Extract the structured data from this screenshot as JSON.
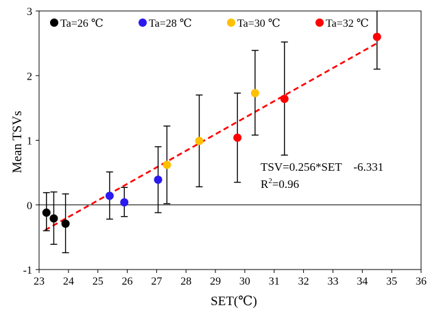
{
  "chart_data": {
    "type": "scatter",
    "title": "",
    "xlabel": "SET(℃)",
    "ylabel": "Mean TSVs",
    "xlim": [
      23,
      36
    ],
    "ylim": [
      -1,
      3
    ],
    "x_ticks": [
      "23",
      "24",
      "25",
      "26",
      "27",
      "28",
      "29",
      "30",
      "31",
      "32",
      "33",
      "34",
      "35",
      "36"
    ],
    "y_ticks": [
      "-1",
      "0",
      "1",
      "2",
      "3"
    ],
    "grid": false,
    "legend_position": "top",
    "series": [
      {
        "name": "Ta=26 ℃",
        "color": "#000000",
        "points": [
          {
            "x": 23.25,
            "y": -0.12,
            "err_low": -0.4,
            "err_high": 0.19
          },
          {
            "x": 23.5,
            "y": -0.21,
            "err_low": -0.61,
            "err_high": 0.2
          },
          {
            "x": 23.9,
            "y": -0.29,
            "err_low": -0.74,
            "err_high": 0.17
          }
        ]
      },
      {
        "name": "Ta=28 ℃",
        "color": "#2a1aef",
        "points": [
          {
            "x": 25.4,
            "y": 0.14,
            "err_low": -0.22,
            "err_high": 0.51
          },
          {
            "x": 25.9,
            "y": 0.04,
            "err_low": -0.18,
            "err_high": 0.27
          },
          {
            "x": 27.05,
            "y": 0.39,
            "err_low": -0.12,
            "err_high": 0.9
          }
        ]
      },
      {
        "name": "Ta=30 ℃",
        "color": "#ffc000",
        "points": [
          {
            "x": 27.35,
            "y": 0.62,
            "err_low": 0.02,
            "err_high": 1.22
          },
          {
            "x": 28.45,
            "y": 0.99,
            "err_low": 0.28,
            "err_high": 1.7
          },
          {
            "x": 30.35,
            "y": 1.73,
            "err_low": 1.08,
            "err_high": 2.39
          }
        ]
      },
      {
        "name": "Ta=32 ℃",
        "color": "#ff0000",
        "points": [
          {
            "x": 29.75,
            "y": 1.04,
            "err_low": 0.35,
            "err_high": 1.73
          },
          {
            "x": 31.35,
            "y": 1.64,
            "err_low": 0.77,
            "err_high": 2.52
          },
          {
            "x": 34.5,
            "y": 2.6,
            "err_low": 2.1,
            "err_high": 3.1
          }
        ]
      }
    ],
    "fit_line": {
      "color": "#ff0000",
      "style": "dashed",
      "x_range": [
        23.2,
        34.5
      ],
      "slope": 0.256,
      "intercept": -6.331
    },
    "annotations": {
      "equation": "TSV=0.256*SET    -6.331",
      "r2_prefix": "R",
      "r2_superscript": "2",
      "r2_suffix": "=0.96"
    }
  }
}
